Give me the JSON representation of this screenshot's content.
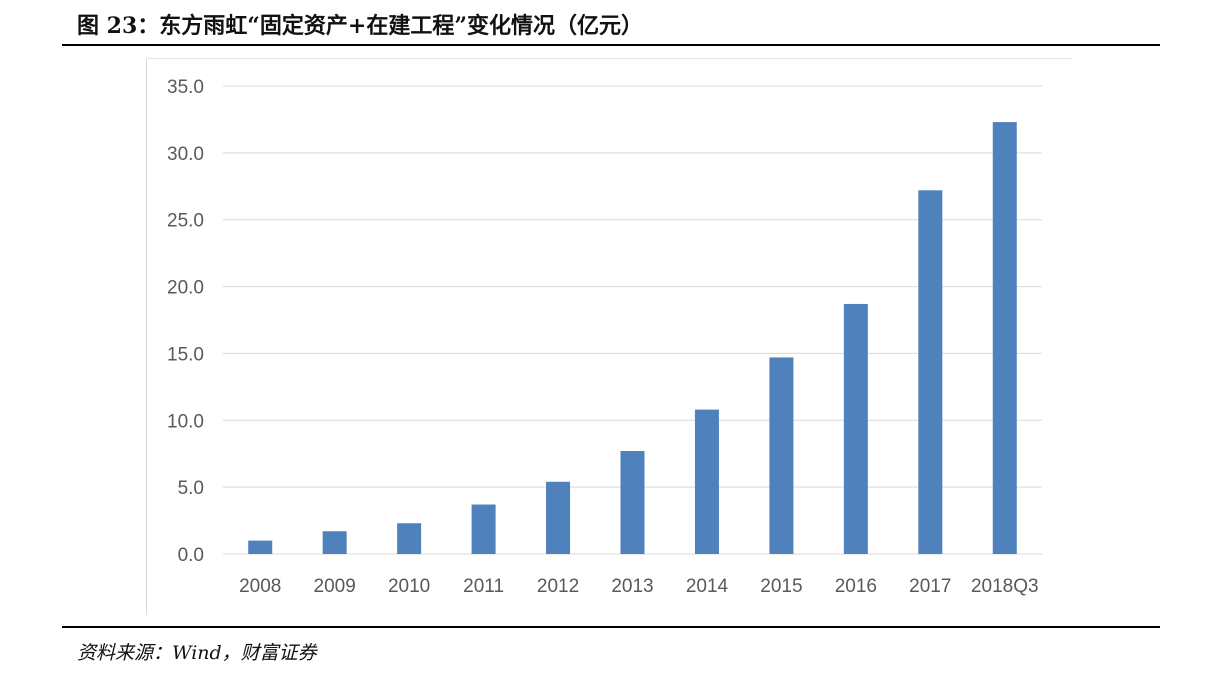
{
  "figure": {
    "title": "图 23：东方雨虹“固定资产+在建工程”变化情况（亿元）",
    "source": "资料来源：Wind，财富证券"
  },
  "chart_data": {
    "type": "bar",
    "title": "",
    "xlabel": "",
    "ylabel": "",
    "categories": [
      "2008",
      "2009",
      "2010",
      "2011",
      "2012",
      "2013",
      "2014",
      "2015",
      "2016",
      "2017",
      "2018Q3"
    ],
    "values": [
      1.0,
      1.7,
      2.3,
      3.7,
      5.4,
      7.7,
      10.8,
      14.7,
      18.7,
      27.2,
      32.3
    ],
    "ylim": [
      0,
      35
    ],
    "yticks": [
      "0.0",
      "5.0",
      "10.0",
      "15.0",
      "20.0",
      "25.0",
      "30.0",
      "35.0"
    ],
    "grid": true,
    "legend": "none",
    "bar_color": "#4f81bd",
    "grid_color": "#d9d9d9"
  }
}
